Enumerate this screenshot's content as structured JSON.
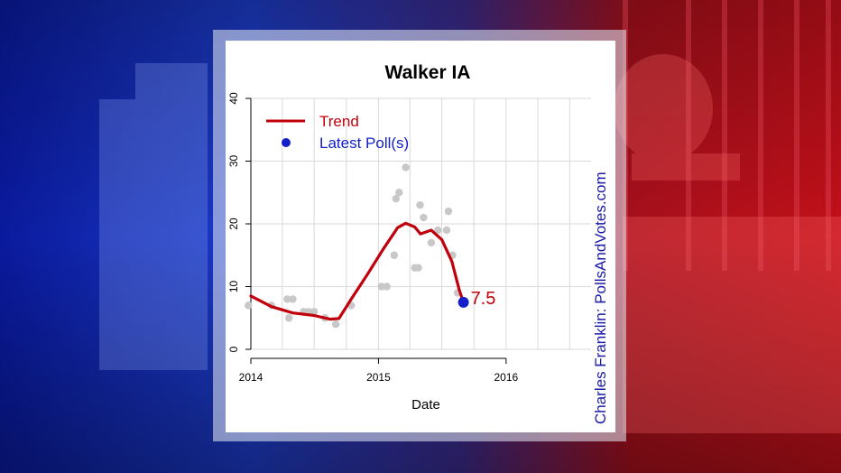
{
  "chart_data": {
    "type": "line",
    "title": "Walker IA",
    "xlabel": "Date",
    "ylabel": "",
    "xlim": [
      "2014-01-01",
      "2016-08-31"
    ],
    "ylim": [
      0,
      40
    ],
    "x_ticks": [
      "2014",
      "2015",
      "2016"
    ],
    "y_ticks": [
      0,
      10,
      20,
      30,
      40
    ],
    "grid": true,
    "legend": {
      "placement": "top-left",
      "entries": [
        {
          "label": "Trend",
          "color": "#c0000b",
          "marker": "line"
        },
        {
          "label": "Latest Poll(s)",
          "color": "#1420c8",
          "marker": "dot"
        }
      ]
    },
    "series": [
      {
        "name": "Trend",
        "color": "#c0000b",
        "points": [
          [
            "2014-01-01",
            8.5
          ],
          [
            "2014-03-01",
            6.8
          ],
          [
            "2014-05-01",
            5.8
          ],
          [
            "2014-07-01",
            5.4
          ],
          [
            "2014-08-15",
            4.8
          ],
          [
            "2014-09-10",
            4.9
          ],
          [
            "2014-10-15",
            8.0
          ],
          [
            "2014-12-01",
            12.0
          ],
          [
            "2015-01-15",
            16.0
          ],
          [
            "2015-02-25",
            19.4
          ],
          [
            "2015-03-20",
            20.1
          ],
          [
            "2015-04-15",
            19.5
          ],
          [
            "2015-05-01",
            18.4
          ],
          [
            "2015-06-01",
            19.0
          ],
          [
            "2015-07-01",
            17.5
          ],
          [
            "2015-07-30",
            14.0
          ],
          [
            "2015-08-20",
            9.5
          ],
          [
            "2015-09-01",
            7.5
          ]
        ]
      },
      {
        "name": "Polls",
        "color": "#c8c8c8",
        "points": [
          [
            "2013-12-25",
            7
          ],
          [
            "2014-03-01",
            7
          ],
          [
            "2014-04-15",
            8
          ],
          [
            "2014-05-01",
            8
          ],
          [
            "2014-04-20",
            5
          ],
          [
            "2014-06-01",
            6
          ],
          [
            "2014-06-15",
            6
          ],
          [
            "2014-07-01",
            6
          ],
          [
            "2014-08-01",
            5
          ],
          [
            "2014-09-01",
            4
          ],
          [
            "2014-10-15",
            7
          ],
          [
            "2015-01-10",
            10
          ],
          [
            "2015-01-25",
            10
          ],
          [
            "2015-02-15",
            15
          ],
          [
            "2015-02-20",
            24
          ],
          [
            "2015-03-01",
            25
          ],
          [
            "2015-03-20",
            29
          ],
          [
            "2015-04-15",
            13
          ],
          [
            "2015-04-25",
            13
          ],
          [
            "2015-04-30",
            23
          ],
          [
            "2015-05-10",
            21
          ],
          [
            "2015-06-01",
            17
          ],
          [
            "2015-06-20",
            19
          ],
          [
            "2015-07-15",
            19
          ],
          [
            "2015-07-20",
            22
          ],
          [
            "2015-08-01",
            15
          ],
          [
            "2015-08-15",
            9
          ]
        ]
      },
      {
        "name": "Latest Poll(s)",
        "color": "#1420c8",
        "points": [
          [
            "2015-09-01",
            7.5
          ]
        ]
      }
    ],
    "annotations": [
      {
        "text": "7.5",
        "color": "#c0000b"
      }
    ],
    "credit": "Charles Franklin: PollsAndVotes.com"
  }
}
